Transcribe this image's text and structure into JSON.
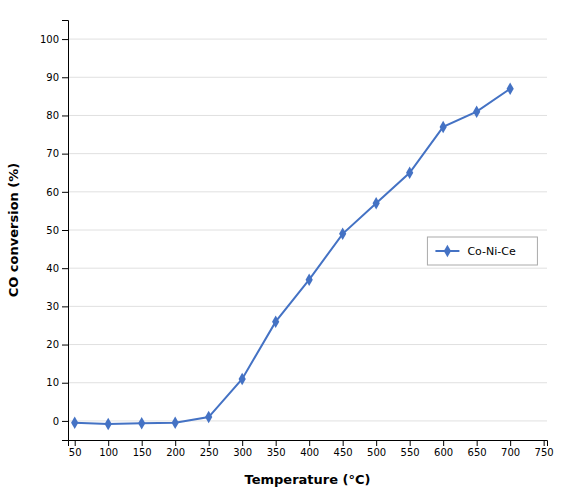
{
  "chart_data": {
    "type": "line",
    "xlabel": "Temperature (°C)",
    "ylabel": "CO conversion (%)",
    "x": [
      50,
      100,
      150,
      200,
      250,
      300,
      350,
      400,
      450,
      500,
      550,
      600,
      650,
      700
    ],
    "series": [
      {
        "name": "Co-Ni-Ce",
        "color": "#4472C4",
        "marker": "diamond",
        "values": [
          -0.5,
          -0.8,
          -0.6,
          -0.5,
          1.0,
          11.0,
          26.0,
          37.0,
          49.0,
          57.0,
          65.0,
          77.0,
          81.0,
          87.0
        ]
      }
    ],
    "xlim": [
      40,
      755
    ],
    "ylim": [
      -5,
      105
    ],
    "xticks": [
      50,
      100,
      150,
      200,
      250,
      300,
      350,
      400,
      450,
      500,
      550,
      600,
      650,
      700,
      750
    ],
    "yticks": [
      0,
      10,
      20,
      30,
      40,
      50,
      60,
      70,
      80,
      90,
      100
    ],
    "grid": "y",
    "legend": "right"
  }
}
